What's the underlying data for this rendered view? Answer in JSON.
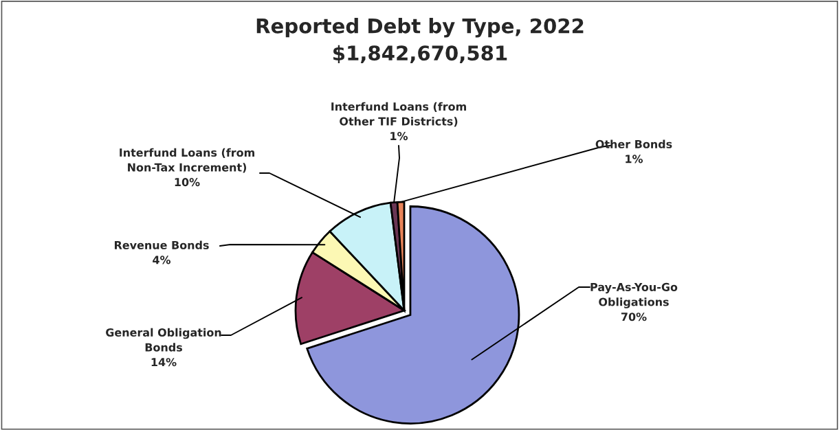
{
  "chart_data": {
    "type": "pie",
    "title": "Reported Debt by Type, 2022\n$1,842,670,581",
    "categories": [
      "Pay-As-You-Go\nObligations",
      "General Obligation\nBonds",
      "Revenue Bonds",
      "Interfund Loans (from\nNon-Tax Increment)",
      "Interfund Loans (from\nOther TIF Districts)",
      "Other Bonds"
    ],
    "values": [
      70,
      14,
      4,
      10,
      1,
      1
    ],
    "value_labels": [
      "70%",
      "14%",
      "4%",
      "10%",
      "1%",
      "1%"
    ],
    "colors": [
      "#8e96dc",
      "#9e4066",
      "#fcf8b4",
      "#c8f2f8",
      "#6a3654",
      "#e8845a"
    ]
  }
}
